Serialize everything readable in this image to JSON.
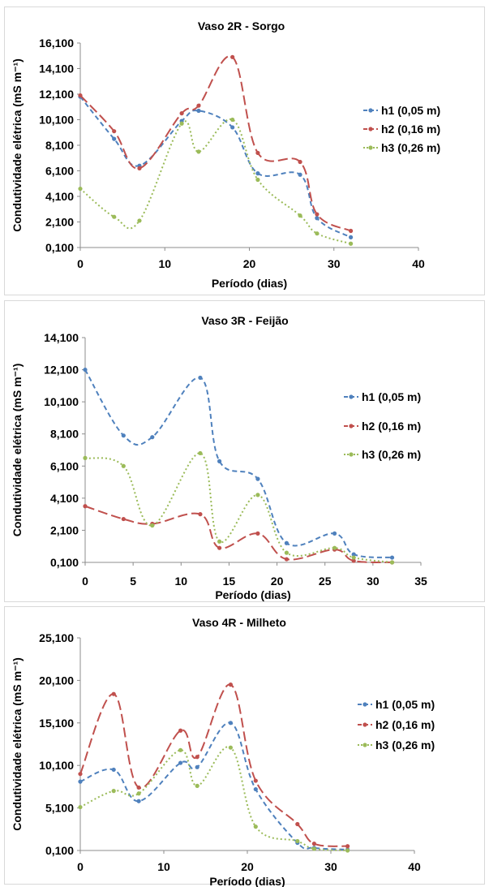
{
  "chart_data": [
    {
      "type": "line",
      "title": "Vaso 2R - Sorgo",
      "xlabel": "Período (dias)",
      "ylabel": "Condutividade elétrica (mS m⁻¹)",
      "xlim": [
        0,
        40
      ],
      "ylim": [
        0.1,
        16.1
      ],
      "xticks": [
        "0",
        "10",
        "20",
        "30",
        "40"
      ],
      "xtick_values": [
        0,
        10,
        20,
        30,
        40
      ],
      "yticks": [
        "0,100",
        "2,100",
        "4,100",
        "6,100",
        "8,100",
        "10,100",
        "12,100",
        "14,100",
        "16,100"
      ],
      "ytick_values": [
        0.1,
        2.1,
        4.1,
        6.1,
        8.1,
        10.1,
        12.1,
        14.1,
        16.1
      ],
      "legend_position": "right",
      "series": [
        {
          "name": "h1 (0,05 m)",
          "color": "#4f81bd",
          "dash": "6,4",
          "x": [
            0,
            4,
            7,
            12,
            14,
            18,
            21,
            26,
            28,
            32
          ],
          "y": [
            11.9,
            8.6,
            6.5,
            10.0,
            10.8,
            9.5,
            5.9,
            5.8,
            2.4,
            0.9
          ]
        },
        {
          "name": "h2 (0,16 m)",
          "color": "#c0504d",
          "dash": "12,5",
          "x": [
            0,
            4,
            7,
            12,
            14,
            18,
            21,
            26,
            28,
            32
          ],
          "y": [
            12.0,
            9.2,
            6.3,
            10.6,
            11.2,
            15.0,
            7.5,
            6.8,
            2.7,
            1.4
          ]
        },
        {
          "name": "h3 (0,26 m)",
          "color": "#9bbb59",
          "dash": "2,3",
          "x": [
            0,
            4,
            7,
            12,
            14,
            18,
            21,
            26,
            28,
            32
          ],
          "y": [
            4.7,
            2.5,
            2.2,
            9.8,
            7.6,
            10.1,
            5.4,
            2.6,
            1.2,
            0.4
          ]
        }
      ]
    },
    {
      "type": "line",
      "title": "Vaso 3R - Feijão",
      "xlabel": "Período (dias)",
      "ylabel": "Condutividade elétrica (mS m⁻¹)",
      "xlim": [
        0,
        35
      ],
      "ylim": [
        0.1,
        14.1
      ],
      "xticks": [
        "0",
        "5",
        "10",
        "15",
        "20",
        "25",
        "30",
        "35"
      ],
      "xtick_values": [
        0,
        5,
        10,
        15,
        20,
        25,
        30,
        35
      ],
      "yticks": [
        "0,100",
        "2,100",
        "4,100",
        "6,100",
        "8,100",
        "10,100",
        "12,100",
        "14,100"
      ],
      "ytick_values": [
        0.1,
        2.1,
        4.1,
        6.1,
        8.1,
        10.1,
        12.1,
        14.1
      ],
      "legend_position": "right",
      "series": [
        {
          "name": "h1 (0,05 m)",
          "color": "#4f81bd",
          "dash": "6,4",
          "x": [
            0,
            4,
            7,
            12,
            14,
            18,
            21,
            26,
            28,
            32
          ],
          "y": [
            12.1,
            8.0,
            7.9,
            11.6,
            6.4,
            5.3,
            1.3,
            1.9,
            0.6,
            0.4
          ]
        },
        {
          "name": "h2 (0,16 m)",
          "color": "#c0504d",
          "dash": "12,5",
          "x": [
            0,
            4,
            7,
            12,
            14,
            18,
            21,
            26,
            28,
            32
          ],
          "y": [
            3.6,
            2.8,
            2.5,
            3.1,
            1.0,
            1.9,
            0.3,
            0.9,
            0.2,
            0.1
          ]
        },
        {
          "name": "h3 (0,26 m)",
          "color": "#9bbb59",
          "dash": "2,3",
          "x": [
            0,
            4,
            7,
            12,
            14,
            18,
            21,
            26,
            28,
            32
          ],
          "y": [
            6.6,
            6.1,
            2.4,
            6.9,
            1.4,
            4.3,
            0.7,
            1.0,
            0.4,
            0.1
          ]
        }
      ]
    },
    {
      "type": "line",
      "title": "Vaso 4R - Milheto",
      "xlabel": "Período (dias)",
      "ylabel": "Condutividade elétrica (mS m⁻¹)",
      "xlim": [
        0,
        40
      ],
      "ylim": [
        0.1,
        25.1
      ],
      "xticks": [
        "0",
        "10",
        "20",
        "30",
        "40"
      ],
      "xtick_values": [
        0,
        10,
        20,
        30,
        40
      ],
      "yticks": [
        "0,100",
        "5,100",
        "10,100",
        "15,100",
        "20,100",
        "25,100"
      ],
      "ytick_values": [
        0.1,
        5.1,
        10.1,
        15.1,
        20.1,
        25.1
      ],
      "legend_position": "right",
      "series": [
        {
          "name": "h1 (0,05 m)",
          "color": "#4f81bd",
          "dash": "6,4",
          "x": [
            0,
            4,
            7,
            12,
            14,
            18,
            21,
            26,
            28,
            32
          ],
          "y": [
            8.2,
            9.6,
            5.9,
            10.4,
            9.9,
            15.1,
            7.3,
            1.0,
            0.4,
            0.2
          ]
        },
        {
          "name": "h2 (0,16 m)",
          "color": "#c0504d",
          "dash": "12,5",
          "x": [
            0,
            4,
            7,
            12,
            14,
            18,
            21,
            26,
            28,
            32
          ],
          "y": [
            9.1,
            18.5,
            7.5,
            14.2,
            11.1,
            19.6,
            8.3,
            3.2,
            0.9,
            0.6
          ]
        },
        {
          "name": "h3 (0,26 m)",
          "color": "#9bbb59",
          "dash": "2,3",
          "x": [
            0,
            4,
            7,
            12,
            14,
            18,
            21,
            26,
            28,
            32
          ],
          "y": [
            5.2,
            7.1,
            6.8,
            11.9,
            7.7,
            12.2,
            2.9,
            1.2,
            0.3,
            0.1
          ]
        }
      ]
    }
  ]
}
